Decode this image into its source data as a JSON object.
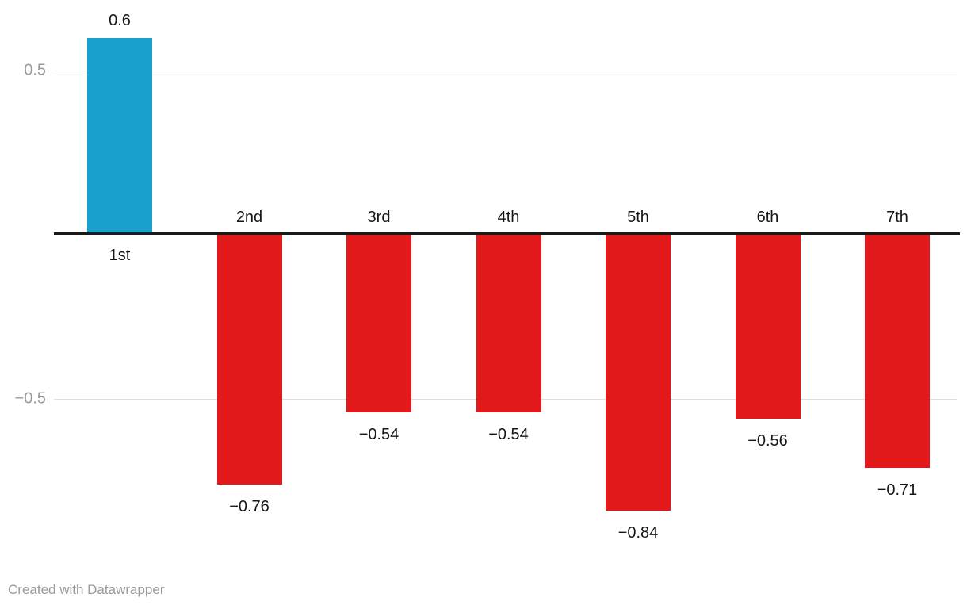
{
  "chart_data": {
    "type": "bar",
    "categories": [
      "1st",
      "2nd",
      "3rd",
      "4th",
      "5th",
      "6th",
      "7th"
    ],
    "values": [
      0.6,
      -0.76,
      -0.54,
      -0.54,
      -0.84,
      -0.56,
      -0.71
    ],
    "value_labels": [
      "0.6",
      "−0.76",
      "−0.54",
      "−0.54",
      "−0.84",
      "−0.56",
      "−0.71"
    ],
    "title": "",
    "xlabel": "",
    "ylabel": "",
    "ylim": [
      -1.0,
      0.72
    ],
    "y_ticks": [
      {
        "value": 0.5,
        "label": "0.5"
      },
      {
        "value": -0.5,
        "label": "−0.5"
      }
    ],
    "grid": "horizontal-only",
    "legend": "none",
    "colors": {
      "positive_bar": "#18A1CD",
      "negative_bar": "#E31A1C",
      "baseline": "#1a1a1a",
      "gridline": "#e0e0e0",
      "tick_text": "#9b9b9b",
      "label_text": "#161616"
    }
  },
  "footer": {
    "attribution": "Created with Datawrapper"
  }
}
